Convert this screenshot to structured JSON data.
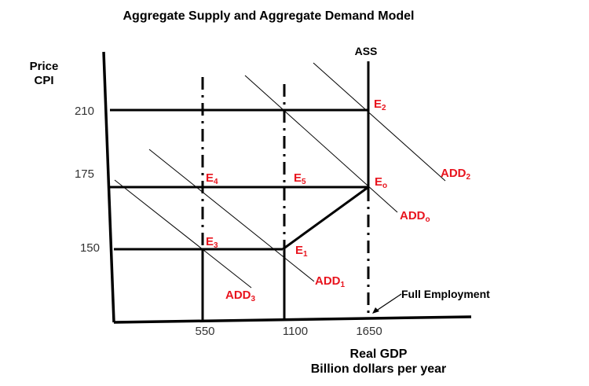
{
  "chart_data": {
    "type": "diagram",
    "title": "Aggregate Supply and Aggregate Demand Model",
    "ylabel_line1": "Price",
    "ylabel_line2": "CPI",
    "xlabel_line1": "Real GDP",
    "xlabel_line2": "Billion dollars per year",
    "x_ticks": [
      "550",
      "1100",
      "1650"
    ],
    "y_ticks": [
      "210",
      "175",
      "150"
    ],
    "supply_label": "ASS",
    "full_employment_label": "Full Employment",
    "equilibria": [
      {
        "main": "E",
        "sub": "2",
        "gdp": 1650,
        "cpi": 210
      },
      {
        "main": "E",
        "sub": "4",
        "gdp": 550,
        "cpi": 175
      },
      {
        "main": "E",
        "sub": "5",
        "gdp": 1100,
        "cpi": 175
      },
      {
        "main": "E",
        "sub": "o",
        "gdp": 1650,
        "cpi": 175
      },
      {
        "main": "E",
        "sub": "3",
        "gdp": 550,
        "cpi": 150
      },
      {
        "main": "E",
        "sub": "1",
        "gdp": 1100,
        "cpi": 150
      }
    ],
    "demand_curves": [
      {
        "main": "ADD",
        "sub": "2"
      },
      {
        "main": "ADD",
        "sub": "o"
      },
      {
        "main": "ADD",
        "sub": "1"
      },
      {
        "main": "ADD",
        "sub": "3"
      }
    ]
  }
}
